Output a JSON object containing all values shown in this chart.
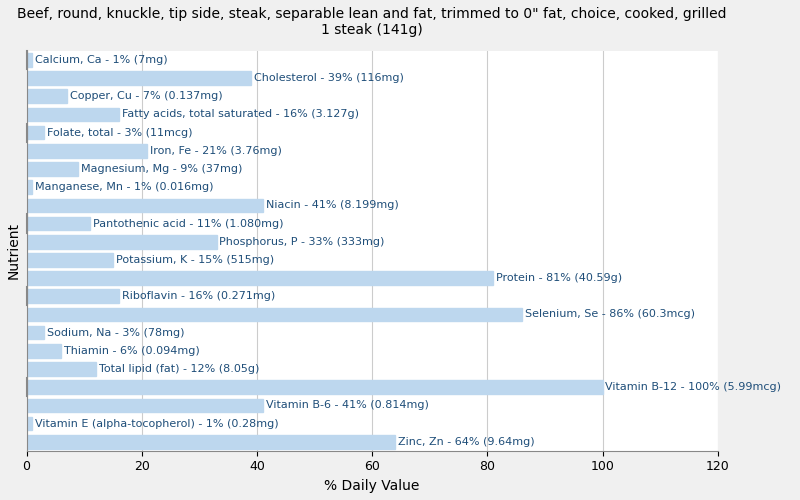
{
  "title": "Beef, round, knuckle, tip side, steak, separable lean and fat, trimmed to 0\" fat, choice, cooked, grilled\n1 steak (141g)",
  "xlabel": "% Daily Value",
  "ylabel": "Nutrient",
  "xlim": [
    0,
    120
  ],
  "xticks": [
    0,
    20,
    40,
    60,
    80,
    100,
    120
  ],
  "bar_color": "#bdd7ee",
  "bg_color": "#f0f0f0",
  "plot_bg_color": "#ffffff",
  "nutrients": [
    {
      "label": "Calcium, Ca - 1% (7mg)",
      "value": 1
    },
    {
      "label": "Cholesterol - 39% (116mg)",
      "value": 39
    },
    {
      "label": "Copper, Cu - 7% (0.137mg)",
      "value": 7
    },
    {
      "label": "Fatty acids, total saturated - 16% (3.127g)",
      "value": 16
    },
    {
      "label": "Folate, total - 3% (11mcg)",
      "value": 3
    },
    {
      "label": "Iron, Fe - 21% (3.76mg)",
      "value": 21
    },
    {
      "label": "Magnesium, Mg - 9% (37mg)",
      "value": 9
    },
    {
      "label": "Manganese, Mn - 1% (0.016mg)",
      "value": 1
    },
    {
      "label": "Niacin - 41% (8.199mg)",
      "value": 41
    },
    {
      "label": "Pantothenic acid - 11% (1.080mg)",
      "value": 11
    },
    {
      "label": "Phosphorus, P - 33% (333mg)",
      "value": 33
    },
    {
      "label": "Potassium, K - 15% (515mg)",
      "value": 15
    },
    {
      "label": "Protein - 81% (40.59g)",
      "value": 81
    },
    {
      "label": "Riboflavin - 16% (0.271mg)",
      "value": 16
    },
    {
      "label": "Selenium, Se - 86% (60.3mcg)",
      "value": 86
    },
    {
      "label": "Sodium, Na - 3% (78mg)",
      "value": 3
    },
    {
      "label": "Thiamin - 6% (0.094mg)",
      "value": 6
    },
    {
      "label": "Total lipid (fat) - 12% (8.05g)",
      "value": 12
    },
    {
      "label": "Vitamin B-12 - 100% (5.99mcg)",
      "value": 100
    },
    {
      "label": "Vitamin B-6 - 41% (0.814mg)",
      "value": 41
    },
    {
      "label": "Vitamin E (alpha-tocopherol) - 1% (0.28mg)",
      "value": 1
    },
    {
      "label": "Zinc, Zn - 64% (9.64mg)",
      "value": 64
    }
  ],
  "title_fontsize": 10,
  "label_fontsize": 8,
  "axis_label_fontsize": 10,
  "tick_fontsize": 9,
  "text_color": "#1f4e79",
  "tick_marks_at": [
    0,
    4,
    8,
    12,
    16,
    21
  ]
}
